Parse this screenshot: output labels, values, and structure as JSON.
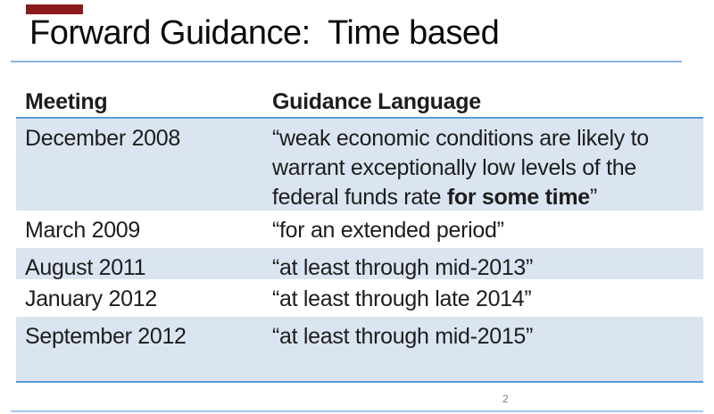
{
  "slide": {
    "title": "Forward Guidance:  Time based",
    "page_number": "2"
  },
  "table": {
    "headers": {
      "meeting": "Meeting",
      "guidance": "Guidance Language"
    },
    "rows": [
      {
        "meeting": "December 2008",
        "guidance_prefix": "“weak economic conditions are likely to\nwarrant exceptionally low levels of the\nfederal funds rate ",
        "guidance_bold": "for some time",
        "guidance_suffix": "”"
      },
      {
        "meeting": "March 2009",
        "guidance": "“for an extended period”"
      },
      {
        "meeting": "August 2011",
        "guidance": "“at least through mid-2013”"
      },
      {
        "meeting": "January 2012",
        "guidance": "“at least through late 2014”"
      },
      {
        "meeting": "September 2012",
        "guidance": "“at least through mid-2015”"
      }
    ]
  },
  "colors": {
    "accent_bar": "#8b1b1b",
    "row_highlight": "#dbe5f1",
    "table_border": "#5b9bd5",
    "title_rule": "#8eb4e3",
    "bottom_rule": "#a7c6e8",
    "text": "#1d1d1d",
    "page_number": "#7f7f7f"
  }
}
